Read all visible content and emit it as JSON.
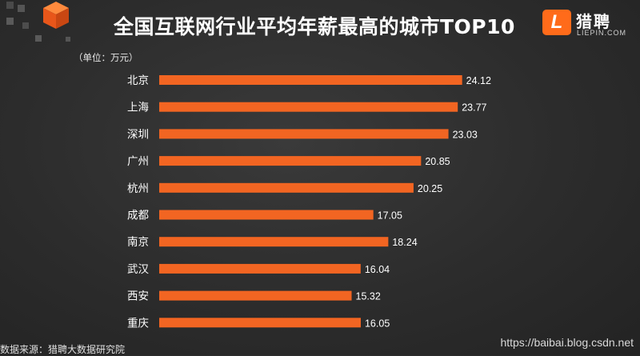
{
  "header": {
    "title": "全国互联网行业平均年薪最高的城市TOP10",
    "logo": {
      "name": "猎聘",
      "sub": "LIEPIN.COM",
      "mark": "L"
    }
  },
  "colors": {
    "bar": "#f26522",
    "accent": "#ff6b1a",
    "background": "#2e2e2e"
  },
  "chart_data": {
    "type": "bar",
    "orientation": "horizontal",
    "unit_label": "（单位：万元）",
    "categories": [
      "北京",
      "上海",
      "深圳",
      "广州",
      "杭州",
      "成都",
      "南京",
      "武汉",
      "西安",
      "重庆"
    ],
    "values": [
      24.12,
      23.77,
      23.03,
      20.85,
      20.25,
      17.05,
      18.24,
      16.04,
      15.32,
      16.05
    ],
    "value_labels": [
      "24.12",
      "23.77",
      "23.03",
      "20.85",
      "20.25",
      "17.05",
      "18.24",
      "16.04",
      "15.32",
      "16.05"
    ],
    "xlim": [
      0,
      25
    ],
    "grid": false,
    "legend": "none"
  },
  "footer": {
    "source": "数据来源：猎聘大数据研究院",
    "watermark": "https://baibai.blog.csdn.net"
  }
}
